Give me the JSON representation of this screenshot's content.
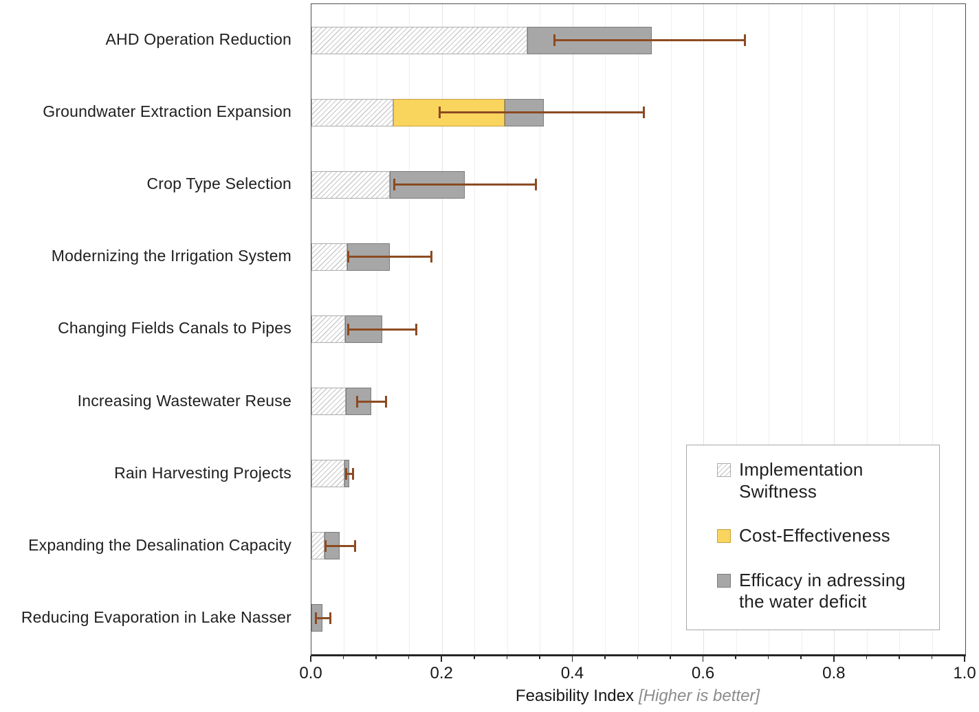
{
  "chart_data": {
    "type": "bar",
    "orientation": "horizontal",
    "stacked": true,
    "xlabel": "Feasibility Index",
    "xlabel_note": "[Higher is better]",
    "xlim": [
      0,
      1
    ],
    "x_tick_labels": [
      "0.0",
      "0.2",
      "0.4",
      "0.6",
      "0.8",
      "1.0"
    ],
    "x_major_tick_step": 0.2,
    "x_minor_tick_step": 0.05,
    "grid": "vertical, minor and major, light gray",
    "legend_position": "inside bottom-right",
    "categories": [
      "AHD Operation Reduction",
      "Groundwater Extraction Expansion",
      "Crop Type Selection",
      "Modernizing the Irrigation System",
      "Changing Fields Canals to Pipes",
      "Increasing Wastewater Reuse",
      "Rain Harvesting Projects",
      "Expanding the Desalination Capacity",
      "Reducing Evaporation in Lake Nasser"
    ],
    "series": [
      {
        "name": "Implementation Swiftness",
        "legend_lines": [
          "Implementation",
          "Swiftness"
        ],
        "style": "hatched",
        "values": [
          0.33,
          0.125,
          0.12,
          0.055,
          0.052,
          0.053,
          0.05,
          0.02,
          0.0
        ]
      },
      {
        "name": "Cost-Effectiveness",
        "legend_lines": [
          "Cost-Effectiveness"
        ],
        "style": "yellow",
        "values": [
          0.0,
          0.17,
          0.0,
          0.0,
          0.0,
          0.0,
          0.0,
          0.0,
          0.0
        ]
      },
      {
        "name": "Efficacy in adressing the water deficit",
        "legend_lines": [
          "Efficacy in adressing",
          "the water deficit"
        ],
        "style": "gray",
        "values": [
          0.19,
          0.06,
          0.115,
          0.065,
          0.056,
          0.039,
          0.008,
          0.023,
          0.017
        ]
      }
    ],
    "stacked_totals": [
      0.52,
      0.355,
      0.235,
      0.12,
      0.108,
      0.092,
      0.058,
      0.043,
      0.017
    ],
    "error_bars": {
      "low": [
        0.37,
        0.195,
        0.125,
        0.055,
        0.055,
        0.068,
        0.052,
        0.02,
        0.005
      ],
      "high": [
        0.665,
        0.51,
        0.345,
        0.185,
        0.162,
        0.116,
        0.065,
        0.068,
        0.031
      ]
    },
    "colors": {
      "hatch_line": "#c9c9c9",
      "hatch_bg": "#ffffff",
      "hatch_border": "#ababab",
      "yellow_fill": "#fad55e",
      "yellow_border": "#c79e3b",
      "gray_fill": "#a7a7a7",
      "gray_border": "#7a7a7a",
      "error_bar": "#8c4a21",
      "grid_minor": "#efefef",
      "grid_major": "#e2e2e2",
      "plot_border": "#4d4d4d",
      "axis_line": "#262626",
      "tick_color": "#262626",
      "text": "#1f1f1f",
      "note_text": "#8c8c8c"
    }
  }
}
